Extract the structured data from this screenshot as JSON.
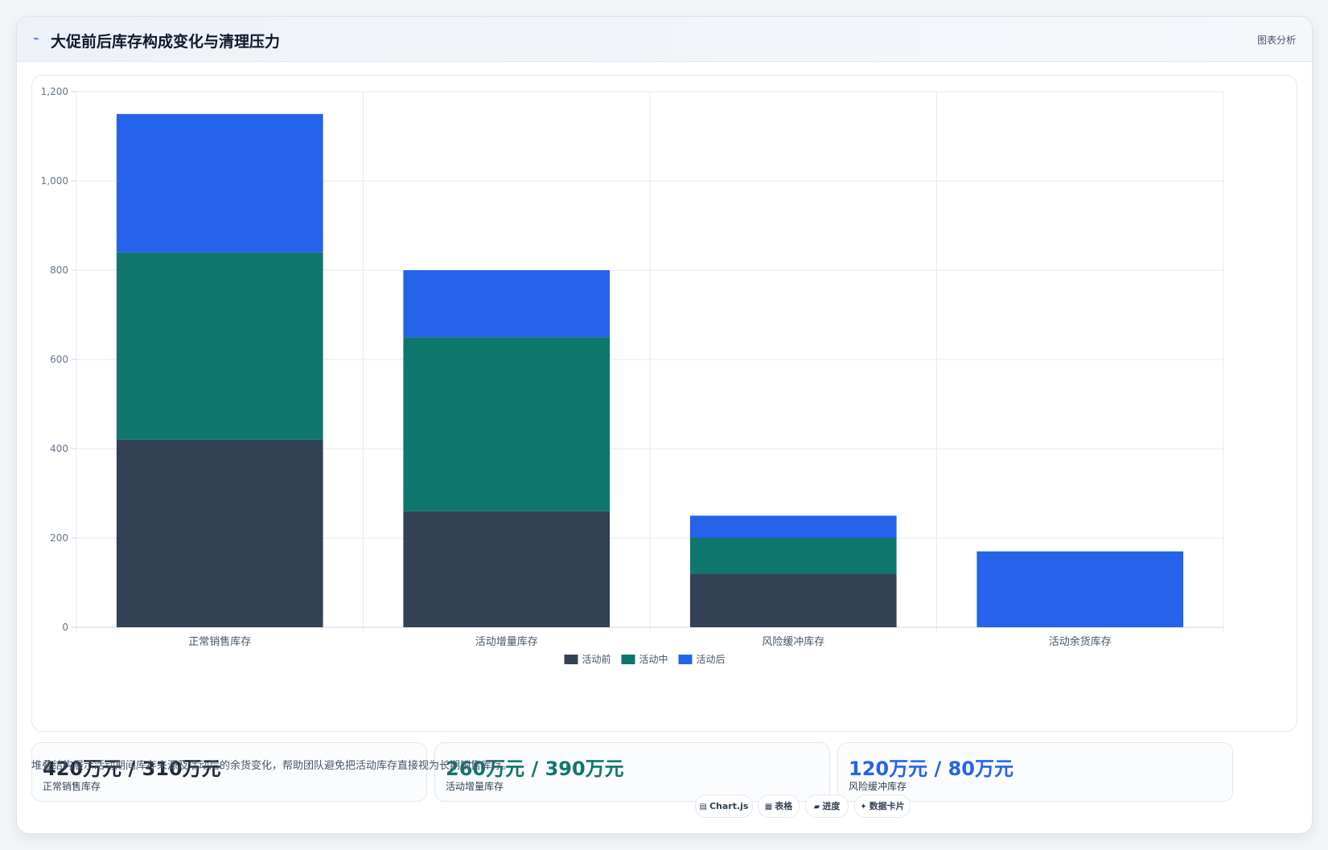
{
  "header": {
    "icon": "trend-line-icon",
    "title": "大促前后库存构成变化与清理压力",
    "tag": "图表分析"
  },
  "chart_data": {
    "type": "bar",
    "stacked": true,
    "categories": [
      "正常销售库存",
      "活动增量库存",
      "风险缓冲库存",
      "活动余货库存"
    ],
    "series": [
      {
        "name": "活动前",
        "color": "#334155",
        "values": [
          420,
          260,
          120,
          0
        ]
      },
      {
        "name": "活动中",
        "color": "#0f766e",
        "values": [
          420,
          390,
          80,
          0
        ]
      },
      {
        "name": "活动后",
        "color": "#2563eb",
        "values": [
          310,
          150,
          50,
          170
        ]
      }
    ],
    "ylim": [
      0,
      1200
    ],
    "yticks": [
      0,
      200,
      400,
      600,
      800,
      1000,
      1200
    ],
    "ytick_labels": [
      "0",
      "200",
      "400",
      "600",
      "800",
      "1,000",
      "1,200"
    ],
    "grid": true,
    "legend": "bottom"
  },
  "stats": [
    {
      "value": "420万元 / 310万元",
      "label": "正常销售库存",
      "color": "#1e293b"
    },
    {
      "value": "260万元 / 390万元",
      "label": "活动增量库存",
      "color": "#0f766e"
    },
    {
      "value": "120万元 / 80万元",
      "label": "风险缓冲库存",
      "color": "#2563eb"
    }
  ],
  "footnote": "堆叠结构展示活动期间库存来源及活动后的余货变化，帮助团队避免把活动库存直接视为长期销售库存。",
  "pills": [
    {
      "icon": "▤",
      "label": "Chart.js"
    },
    {
      "icon": "▦",
      "label": "表格"
    },
    {
      "icon": "▰",
      "label": "进度"
    },
    {
      "icon": "✦",
      "label": "数据卡片"
    }
  ]
}
